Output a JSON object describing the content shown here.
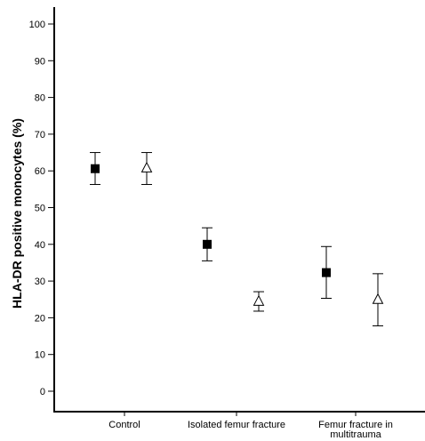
{
  "chart_data": {
    "type": "scatter",
    "title": "",
    "xlabel": "",
    "ylabel": "HLA-DR positive monocytes (%)",
    "ylim": [
      0,
      100
    ],
    "yticks": [
      0,
      10,
      20,
      30,
      40,
      50,
      60,
      70,
      80,
      90,
      100
    ],
    "grid": false,
    "legend": "none",
    "categories": [
      [
        "Control"
      ],
      [
        "Isolated femur fracture"
      ],
      [
        "Femur fracture in",
        "multitrauma"
      ]
    ],
    "series": [
      {
        "marker": "filled-square",
        "color": "#000000",
        "values": [
          60.6,
          40.0,
          32.3
        ],
        "error_low": [
          56.3,
          35.5,
          25.3
        ],
        "error_high": [
          65.0,
          44.5,
          39.4
        ]
      },
      {
        "marker": "open-triangle",
        "color": "#000000",
        "values": [
          60.8,
          24.5,
          25.0
        ],
        "error_low": [
          56.3,
          21.8,
          17.8
        ],
        "error_high": [
          65.0,
          27.1,
          32.0
        ]
      }
    ]
  }
}
